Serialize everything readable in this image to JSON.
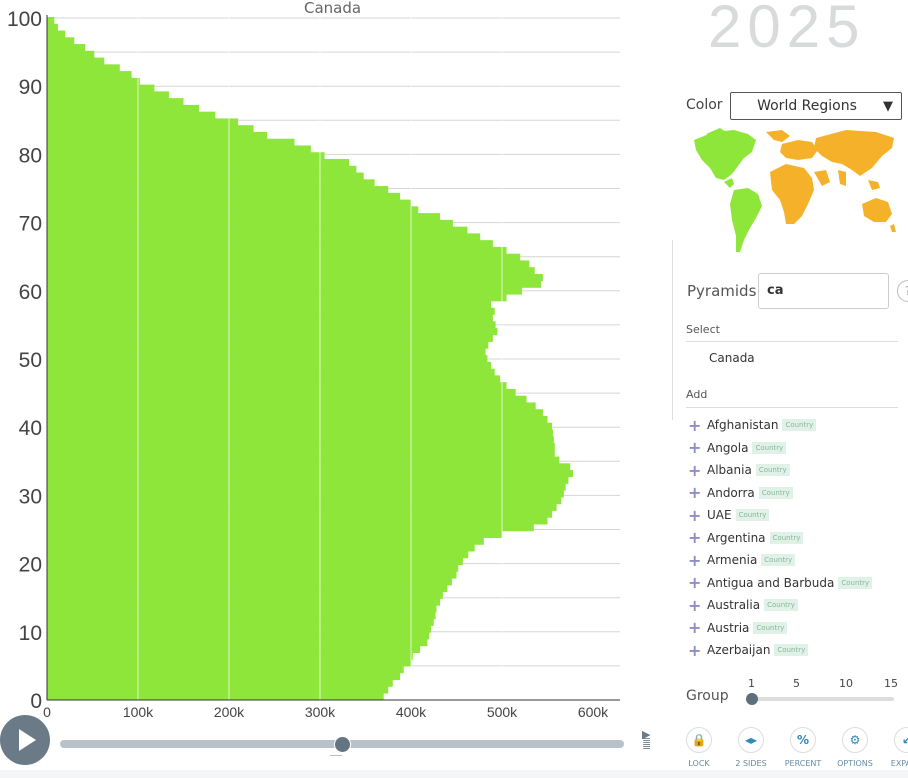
{
  "chart_title": "Canada",
  "year": "2025",
  "color_label": "Color",
  "color_select": "World Regions",
  "colors": {
    "bars": "#8ee63a",
    "map_americas": "#8ee63a",
    "map_other": "#f6b12b",
    "accent": "#2e8ab8"
  },
  "pyramids_label": "Pyramids",
  "search_value": "ca",
  "help_icon": "?",
  "select_header": "Select",
  "selected_item": "Canada",
  "add_header": "Add",
  "add_items": [
    {
      "name": "Afghanistan",
      "badge": "Country"
    },
    {
      "name": "Angola",
      "badge": "Country"
    },
    {
      "name": "Albania",
      "badge": "Country"
    },
    {
      "name": "Andorra",
      "badge": "Country"
    },
    {
      "name": "UAE",
      "badge": "Country"
    },
    {
      "name": "Argentina",
      "badge": "Country"
    },
    {
      "name": "Armenia",
      "badge": "Country"
    },
    {
      "name": "Antigua and Barbuda",
      "badge": "Country"
    },
    {
      "name": "Australia",
      "badge": "Country"
    },
    {
      "name": "Austria",
      "badge": "Country"
    },
    {
      "name": "Azerbaijan",
      "badge": "Country"
    }
  ],
  "group_label": "Group",
  "group_ticks": [
    "1",
    "5",
    "10",
    "15"
  ],
  "group_value": 1,
  "timeline_position": 0.5,
  "toolbar": [
    {
      "label": "LOCK",
      "icon": "lock-icon",
      "glyph": "🔒"
    },
    {
      "label": "2 SIDES",
      "icon": "two-sides-icon",
      "glyph": "◂▸"
    },
    {
      "label": "PERCENT",
      "icon": "percent-icon",
      "glyph": "%"
    },
    {
      "label": "OPTIONS",
      "icon": "gear-icon",
      "glyph": "⚙"
    },
    {
      "label": "EXPAND",
      "icon": "expand-icon",
      "glyph": "↙"
    }
  ],
  "chart_data": {
    "type": "bar",
    "orientation": "horizontal",
    "title": "Canada",
    "xlabel": "",
    "ylabel": "",
    "xlim": [
      0,
      630000
    ],
    "ylim": [
      0,
      100
    ],
    "x_ticks": [
      "0",
      "100k",
      "200k",
      "300k",
      "400k",
      "500k",
      "600k"
    ],
    "y_ticks": [
      "0",
      "10",
      "20",
      "30",
      "40",
      "50",
      "60",
      "70",
      "80",
      "90",
      "100"
    ],
    "grid": true,
    "ages": [
      0,
      1,
      2,
      3,
      4,
      5,
      6,
      7,
      8,
      9,
      10,
      11,
      12,
      13,
      14,
      15,
      16,
      17,
      18,
      19,
      20,
      21,
      22,
      23,
      24,
      25,
      26,
      27,
      28,
      29,
      30,
      31,
      32,
      33,
      34,
      35,
      36,
      37,
      38,
      39,
      40,
      41,
      42,
      43,
      44,
      45,
      46,
      47,
      48,
      49,
      50,
      51,
      52,
      53,
      54,
      55,
      56,
      57,
      58,
      59,
      60,
      61,
      62,
      63,
      64,
      65,
      66,
      67,
      68,
      69,
      70,
      71,
      72,
      73,
      74,
      75,
      76,
      77,
      78,
      79,
      80,
      81,
      82,
      83,
      84,
      85,
      86,
      87,
      88,
      89,
      90,
      91,
      92,
      93,
      94,
      95,
      96,
      97,
      98,
      99,
      100
    ],
    "values": [
      370000,
      375000,
      380000,
      388000,
      392000,
      400000,
      402000,
      410000,
      418000,
      420000,
      422000,
      425000,
      427000,
      428000,
      432000,
      435000,
      440000,
      445000,
      450000,
      452000,
      457000,
      463000,
      470000,
      480000,
      500000,
      535000,
      550000,
      555000,
      560000,
      565000,
      568000,
      570000,
      573000,
      578000,
      575000,
      563000,
      558000,
      558000,
      557000,
      556000,
      555000,
      550000,
      545000,
      537000,
      527000,
      515000,
      505000,
      498000,
      492000,
      488000,
      484000,
      482000,
      485000,
      490000,
      495000,
      493000,
      490000,
      492000,
      488000,
      505000,
      522000,
      543000,
      545000,
      536000,
      530000,
      520000,
      505000,
      490000,
      476000,
      462000,
      446000,
      432000,
      408000,
      400000,
      388000,
      375000,
      360000,
      348000,
      340000,
      332000,
      305000,
      290000,
      272000,
      242000,
      227000,
      210000,
      185000,
      167000,
      150000,
      134000,
      118000,
      102000,
      93000,
      80000,
      63000,
      52000,
      42000,
      30000,
      20000,
      12000,
      8000
    ]
  }
}
